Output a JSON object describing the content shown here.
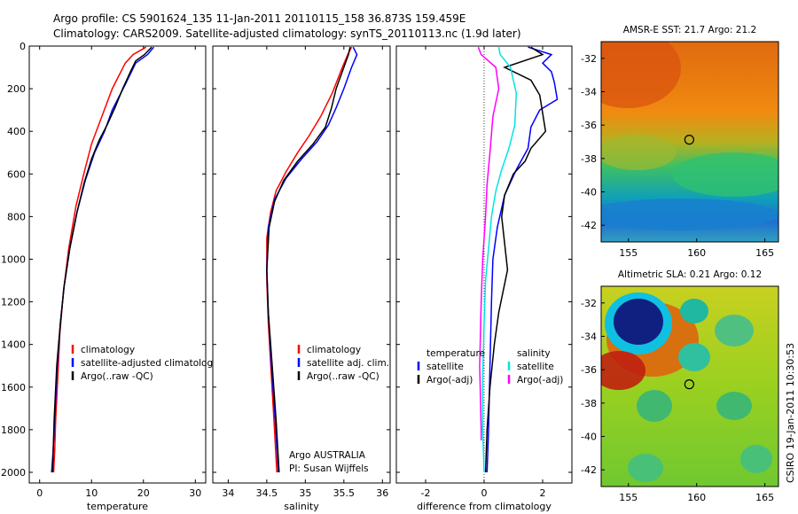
{
  "header": {
    "line1": "Argo profile: CS 5901624_135 11-Jan-2011 20110115_158 36.873S 159.459E",
    "line2": "Climatology: CARS2009. Satellite-adjusted climatology: synTS_20110113.nc (1.9d later)"
  },
  "footer": {
    "credit1": "Argo AUSTRALIA",
    "credit2": "PI: Susan Wijffels",
    "stamp": "CSIRO 19-Jan-2011 10:30:53"
  },
  "colors": {
    "climatology": "#ff0000",
    "satellite": "#0000ff",
    "argo": "#000000",
    "salinity_satellite": "#00e5e5",
    "salinity_argo": "#ff00ff"
  },
  "chart_data": [
    {
      "id": "temperature",
      "type": "line",
      "xlabel": "temperature",
      "ylabel": "",
      "xlim": [
        -2,
        32
      ],
      "ylim": [
        2050,
        0
      ],
      "xticks": [
        0,
        10,
        20,
        30
      ],
      "yticks": [
        0,
        200,
        400,
        600,
        800,
        1000,
        1200,
        1400,
        1600,
        1800,
        2000
      ],
      "legend": [
        "climatology",
        "satellite-adjusted climatology",
        "Argo(..raw -QC)"
      ],
      "series": [
        {
          "name": "climatology",
          "color": "#ff0000",
          "x": [
            20.5,
            18,
            16.5,
            14,
            12,
            10,
            8.5,
            7,
            5.6,
            4.6,
            3.9,
            3.5,
            3.1,
            2.9,
            2.7
          ],
          "y": [
            5,
            40,
            80,
            200,
            330,
            460,
            600,
            750,
            950,
            1150,
            1350,
            1550,
            1750,
            1900,
            2000
          ]
        },
        {
          "name": "satellite-adjusted climatology",
          "color": "#0000ff",
          "x": [
            22,
            20.8,
            18.5,
            16.5,
            14,
            12.5,
            10.6,
            8.8,
            7.2,
            5.8,
            4.7,
            4,
            3.4,
            3,
            2.6,
            2.3
          ],
          "y": [
            5,
            40,
            80,
            180,
            300,
            400,
            500,
            630,
            780,
            950,
            1130,
            1300,
            1500,
            1700,
            1900,
            2000
          ]
        },
        {
          "name": "Argo(..raw -QC)",
          "color": "#000000",
          "x": [
            21.6,
            20.2,
            18.5,
            17.5,
            16,
            14.5,
            13,
            11.5,
            10,
            8.6,
            7.2,
            5.8,
            4.7,
            4,
            3.3,
            2.8,
            2.5
          ],
          "y": [
            5,
            40,
            70,
            120,
            200,
            290,
            370,
            440,
            530,
            640,
            780,
            950,
            1130,
            1300,
            1500,
            1750,
            2000
          ]
        }
      ]
    },
    {
      "id": "salinity",
      "type": "line",
      "xlabel": "salinity",
      "ylabel": "",
      "xlim": [
        33.8,
        36.1
      ],
      "ylim": [
        2050,
        0
      ],
      "xticks": [
        34,
        34.5,
        35,
        35.5,
        36
      ],
      "legend": [
        "climatology",
        "satellite adj. clim.",
        "Argo(..raw -QC)"
      ],
      "series": [
        {
          "name": "climatology",
          "color": "#ff0000",
          "x": [
            35.6,
            35.55,
            35.48,
            35.35,
            35.2,
            35.05,
            34.9,
            34.75,
            34.62,
            34.55,
            34.5,
            34.5,
            34.52,
            34.56,
            34.6,
            34.63
          ],
          "y": [
            5,
            40,
            100,
            220,
            330,
            420,
            500,
            590,
            680,
            780,
            900,
            1100,
            1300,
            1550,
            1800,
            2000
          ]
        },
        {
          "name": "satellite adj. clim.",
          "color": "#0000ff",
          "x": [
            35.62,
            35.67,
            35.6,
            35.5,
            35.4,
            35.3,
            35.15,
            34.95,
            34.75,
            34.6,
            34.52,
            34.5,
            34.52,
            34.56,
            34.61,
            34.65
          ],
          "y": [
            5,
            40,
            100,
            200,
            290,
            370,
            450,
            530,
            620,
            720,
            850,
            1050,
            1250,
            1500,
            1750,
            2000
          ]
        },
        {
          "name": "Argo(..raw -QC)",
          "color": "#000000",
          "x": [
            35.58,
            35.56,
            35.5,
            35.4,
            35.34,
            35.26,
            35.1,
            34.9,
            34.72,
            34.6,
            34.53,
            34.5,
            34.52,
            34.57,
            34.62,
            34.66
          ],
          "y": [
            5,
            40,
            100,
            200,
            290,
            380,
            460,
            540,
            630,
            730,
            850,
            1050,
            1250,
            1500,
            1750,
            2000
          ]
        }
      ],
      "annotations": [
        "Argo AUSTRALIA",
        "PI: Susan Wijffels"
      ]
    },
    {
      "id": "difference",
      "type": "line",
      "xlabel": "difference from climatology",
      "ylabel": "",
      "xlim": [
        -3,
        3
      ],
      "ylim": [
        2050,
        0
      ],
      "xticks": [
        -2,
        0,
        2
      ],
      "zero_line": true,
      "legend_groups": [
        {
          "title": "temperature",
          "entries": [
            "satellite",
            "Argo(-adj)"
          ]
        },
        {
          "title": "salinity",
          "entries": [
            "satellite",
            "Argo(-adj)"
          ]
        }
      ],
      "series": [
        {
          "name": "temperature satellite",
          "color": "#0000ff",
          "x": [
            1.5,
            2.3,
            2.0,
            2.3,
            2.4,
            2.5,
            1.9,
            1.6,
            1.5,
            1.1,
            0.7,
            0.45,
            0.3,
            0.25,
            0.2,
            0.15,
            0.1
          ],
          "y": [
            5,
            40,
            80,
            120,
            170,
            250,
            300,
            380,
            480,
            580,
            700,
            850,
            1000,
            1200,
            1500,
            1800,
            2000
          ]
        },
        {
          "name": "temperature Argo(-adj)",
          "color": "#000000",
          "x": [
            1.6,
            2.0,
            0.7,
            1.6,
            1.9,
            2.1,
            1.6,
            1.4,
            1.0,
            0.7,
            0.6,
            0.8,
            0.5,
            0.35,
            0.2,
            0.1,
            0.05
          ],
          "y": [
            5,
            40,
            100,
            160,
            230,
            400,
            480,
            540,
            600,
            700,
            800,
            1050,
            1250,
            1400,
            1600,
            1800,
            2000
          ]
        },
        {
          "name": "salinity satellite",
          "color": "#00e5e5",
          "x": [
            0.5,
            0.55,
            0.9,
            1.1,
            1.05,
            0.85,
            0.6,
            0.4,
            0.25,
            0.15,
            0.05,
            0.0,
            -0.05,
            -0.05,
            0.0
          ],
          "y": [
            5,
            40,
            100,
            220,
            370,
            480,
            580,
            680,
            800,
            950,
            1100,
            1300,
            1550,
            1800,
            2000
          ]
        },
        {
          "name": "salinity Argo(-adj)",
          "color": "#ff00ff",
          "x": [
            -0.2,
            -0.1,
            0.4,
            0.5,
            0.3,
            0.2,
            0.1,
            0.05,
            -0.05,
            -0.1,
            -0.15,
            -0.1,
            -0.1
          ],
          "y": [
            5,
            40,
            100,
            200,
            330,
            500,
            650,
            800,
            1000,
            1200,
            1500,
            1800,
            1850
          ]
        }
      ]
    },
    {
      "id": "sst-map",
      "type": "heatmap",
      "title": "AMSR-E SST: 21.7  Argo: 21.2",
      "xlim": [
        153,
        166
      ],
      "ylim": [
        -43,
        -31
      ],
      "xticks": [
        155,
        160,
        165
      ],
      "yticks": [
        -32,
        -34,
        -36,
        -38,
        -40,
        -42
      ],
      "marker": {
        "lon": 159.459,
        "lat": -36.873
      }
    },
    {
      "id": "sla-map",
      "type": "heatmap",
      "title": "Altimetric SLA: 0.21  Argo: 0.12",
      "xlim": [
        153,
        166
      ],
      "ylim": [
        -43,
        -31
      ],
      "xticks": [
        155,
        160,
        165
      ],
      "yticks": [
        -32,
        -34,
        -36,
        -38,
        -40,
        -42
      ],
      "marker": {
        "lon": 159.459,
        "lat": -36.873
      }
    }
  ]
}
